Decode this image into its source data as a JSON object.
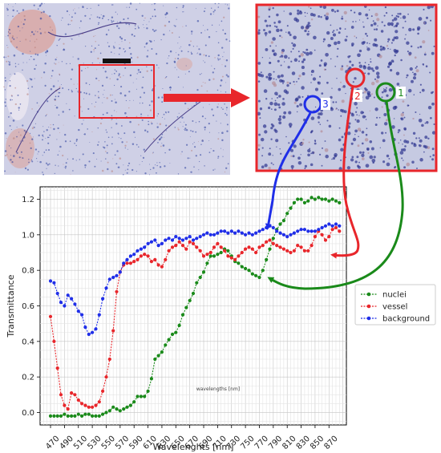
{
  "colors": {
    "nuclei": "#1a8a1a",
    "vessel": "#e8262b",
    "background": "#1f2ee8",
    "frame_red": "#e8262b",
    "tissue_base": "#cfd0e6",
    "tissue_pink": "#dba39c",
    "tissue_dark": "#273a9a"
  },
  "inset": {
    "markers": [
      {
        "label": "1",
        "color": "#1a8a1a"
      },
      {
        "label": "2",
        "color": "#e8262b"
      },
      {
        "label": "3",
        "color": "#1f2ee8"
      }
    ]
  },
  "chart_data": {
    "type": "line",
    "xlabel": "Wavelenghts [nm]",
    "ylabel": "Transmittance",
    "ylim": [
      -0.07,
      1.27
    ],
    "xlim": [
      455,
      895
    ],
    "xticks": [
      470,
      490,
      510,
      530,
      550,
      570,
      590,
      610,
      630,
      650,
      670,
      690,
      710,
      730,
      750,
      770,
      790,
      810,
      830,
      850,
      870
    ],
    "yticks": [
      0.0,
      0.2,
      0.4,
      0.6,
      0.8,
      1.0,
      1.2
    ],
    "grid": true,
    "legend_position": "right",
    "annotation": "wavelengths [nm]",
    "x": [
      470,
      475,
      480,
      485,
      490,
      495,
      500,
      505,
      510,
      515,
      520,
      525,
      530,
      535,
      540,
      545,
      550,
      555,
      560,
      565,
      570,
      575,
      580,
      585,
      590,
      595,
      600,
      605,
      610,
      615,
      620,
      625,
      630,
      635,
      640,
      645,
      650,
      655,
      660,
      665,
      670,
      675,
      680,
      685,
      690,
      695,
      700,
      705,
      710,
      715,
      720,
      725,
      730,
      735,
      740,
      745,
      750,
      755,
      760,
      765,
      770,
      775,
      780,
      785,
      790,
      795,
      800,
      805,
      810,
      815,
      820,
      825,
      830,
      835,
      840,
      845,
      850,
      855,
      860,
      865,
      870,
      875,
      880,
      885
    ],
    "series": [
      {
        "name": "nuclei",
        "color": "#1a8a1a",
        "values": [
          -0.02,
          -0.02,
          -0.02,
          -0.02,
          -0.01,
          -0.02,
          -0.02,
          -0.02,
          -0.01,
          -0.02,
          -0.01,
          -0.01,
          -0.02,
          -0.02,
          -0.02,
          -0.01,
          0.0,
          0.01,
          0.03,
          0.02,
          0.01,
          0.02,
          0.03,
          0.04,
          0.06,
          0.09,
          0.09,
          0.09,
          0.12,
          0.19,
          0.3,
          0.32,
          0.34,
          0.38,
          0.41,
          0.44,
          0.45,
          0.49,
          0.55,
          0.59,
          0.63,
          0.67,
          0.73,
          0.76,
          0.79,
          0.84,
          0.88,
          0.88,
          0.89,
          0.9,
          0.92,
          0.91,
          0.88,
          0.85,
          0.84,
          0.82,
          0.81,
          0.8,
          0.78,
          0.77,
          0.76,
          0.8,
          0.86,
          0.92,
          0.98,
          1.03,
          1.06,
          1.08,
          1.12,
          1.15,
          1.18,
          1.2,
          1.2,
          1.18,
          1.19,
          1.21,
          1.2,
          1.21,
          1.2,
          1.2,
          1.19,
          1.2,
          1.19,
          1.18
        ]
      },
      {
        "name": "vessel",
        "color": "#e8262b",
        "values": [
          0.54,
          0.4,
          0.25,
          0.1,
          0.04,
          0.02,
          0.11,
          0.1,
          0.07,
          0.05,
          0.04,
          0.03,
          0.03,
          0.04,
          0.06,
          0.12,
          0.2,
          0.3,
          0.46,
          0.68,
          0.79,
          0.83,
          0.84,
          0.84,
          0.85,
          0.86,
          0.88,
          0.89,
          0.88,
          0.85,
          0.86,
          0.83,
          0.82,
          0.86,
          0.91,
          0.93,
          0.94,
          0.96,
          0.94,
          0.92,
          0.96,
          0.95,
          0.93,
          0.91,
          0.88,
          0.89,
          0.9,
          0.93,
          0.95,
          0.93,
          0.91,
          0.88,
          0.87,
          0.86,
          0.88,
          0.9,
          0.92,
          0.93,
          0.92,
          0.9,
          0.93,
          0.94,
          0.96,
          0.97,
          0.95,
          0.94,
          0.93,
          0.92,
          0.91,
          0.9,
          0.91,
          0.94,
          0.93,
          0.91,
          0.91,
          0.94,
          0.99,
          1.02,
          1.0,
          0.97,
          0.99,
          1.03,
          1.04,
          1.02
        ]
      },
      {
        "name": "background",
        "color": "#1f2ee8",
        "values": [
          0.74,
          0.73,
          0.67,
          0.62,
          0.6,
          0.66,
          0.64,
          0.61,
          0.57,
          0.55,
          0.48,
          0.44,
          0.45,
          0.47,
          0.55,
          0.64,
          0.7,
          0.75,
          0.76,
          0.77,
          0.79,
          0.84,
          0.86,
          0.88,
          0.89,
          0.91,
          0.92,
          0.93,
          0.95,
          0.96,
          0.97,
          0.94,
          0.95,
          0.97,
          0.98,
          0.97,
          0.99,
          0.98,
          0.97,
          0.98,
          0.99,
          0.97,
          0.98,
          0.99,
          1.0,
          1.01,
          1.0,
          1.0,
          1.01,
          1.02,
          1.02,
          1.01,
          1.02,
          1.01,
          1.02,
          1.01,
          1.0,
          1.01,
          1.0,
          1.01,
          1.02,
          1.03,
          1.04,
          1.05,
          1.04,
          1.02,
          1.01,
          1.0,
          0.99,
          1.0,
          1.01,
          1.02,
          1.03,
          1.03,
          1.02,
          1.02,
          1.02,
          1.03,
          1.04,
          1.05,
          1.06,
          1.05,
          1.06,
          1.05
        ]
      }
    ]
  }
}
